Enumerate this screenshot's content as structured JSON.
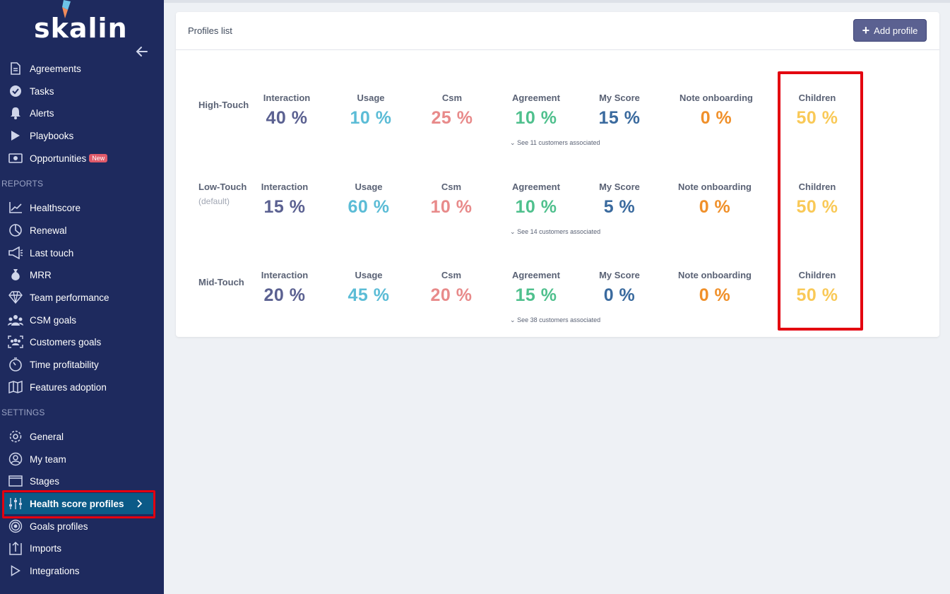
{
  "brand": {
    "name": "skalin"
  },
  "nav": {
    "top_items": [
      {
        "label": "Agreements",
        "icon": "document-icon"
      },
      {
        "label": "Tasks",
        "icon": "check-circle-icon"
      },
      {
        "label": "Alerts",
        "icon": "bell-icon"
      },
      {
        "label": "Playbooks",
        "icon": "play-icon"
      },
      {
        "label": "Opportunities",
        "icon": "money-icon",
        "badge": "New"
      }
    ],
    "reports_heading": "REPORTS",
    "reports_items": [
      {
        "label": "Healthscore",
        "icon": "line-chart-icon"
      },
      {
        "label": "Renewal",
        "icon": "pie-chart-icon"
      },
      {
        "label": "Last touch",
        "icon": "megaphone-icon"
      },
      {
        "label": "MRR",
        "icon": "money-bag-icon"
      },
      {
        "label": "Team performance",
        "icon": "diamond-icon"
      },
      {
        "label": "CSM goals",
        "icon": "team-icon"
      },
      {
        "label": "Customers goals",
        "icon": "group-frame-icon"
      },
      {
        "label": "Time profitability",
        "icon": "stopwatch-icon"
      },
      {
        "label": "Features adoption",
        "icon": "map-icon"
      }
    ],
    "settings_heading": "SETTINGS",
    "settings_items": [
      {
        "label": "General",
        "icon": "gear-icon"
      },
      {
        "label": "My team",
        "icon": "user-circle-icon"
      },
      {
        "label": "Stages",
        "icon": "window-icon"
      },
      {
        "label": "Health score profiles",
        "icon": "sliders-icon",
        "active": true
      },
      {
        "label": "Goals profiles",
        "icon": "target-icon"
      },
      {
        "label": "Imports",
        "icon": "upload-icon"
      },
      {
        "label": "Integrations",
        "icon": "play-outline-icon"
      }
    ]
  },
  "main": {
    "title": "Profiles list",
    "add_button": "Add profile",
    "profiles": [
      {
        "name": "High-Touch",
        "sub": "",
        "metrics": [
          {
            "label": "Interaction",
            "value": "40 %"
          },
          {
            "label": "Usage",
            "value": "10 %"
          },
          {
            "label": "Csm",
            "value": "25 %"
          },
          {
            "label": "Agreement",
            "value": "10 %"
          },
          {
            "label": "My Score",
            "value": "15 %"
          },
          {
            "label": "Note onboarding",
            "value": "0 %"
          },
          {
            "label": "Children",
            "value": "50 %"
          }
        ],
        "see_link": "See 11 customers associated"
      },
      {
        "name": "Low-Touch",
        "sub": "(default)",
        "metrics": [
          {
            "label": "Interaction",
            "value": "15 %"
          },
          {
            "label": "Usage",
            "value": "60 %"
          },
          {
            "label": "Csm",
            "value": "10 %"
          },
          {
            "label": "Agreement",
            "value": "10 %"
          },
          {
            "label": "My Score",
            "value": "5 %"
          },
          {
            "label": "Note onboarding",
            "value": "0 %"
          },
          {
            "label": "Children",
            "value": "50 %"
          }
        ],
        "see_link": "See 14 customers associated"
      },
      {
        "name": "Mid-Touch",
        "sub": "",
        "metrics": [
          {
            "label": "Interaction",
            "value": "20 %"
          },
          {
            "label": "Usage",
            "value": "45 %"
          },
          {
            "label": "Csm",
            "value": "20 %"
          },
          {
            "label": "Agreement",
            "value": "15 %"
          },
          {
            "label": "My Score",
            "value": "0 %"
          },
          {
            "label": "Note onboarding",
            "value": "0 %"
          },
          {
            "label": "Children",
            "value": "50 %"
          }
        ],
        "see_link": "See 38 customers associated"
      }
    ]
  },
  "colors": {
    "sidebar": "#1e2a5e",
    "active": "#0b5a87",
    "highlight": "#e3000f",
    "interaction": "#5b6191",
    "usage": "#5bbcd6",
    "csm": "#e88a8a",
    "agreement": "#4fc08d",
    "my_score": "#3a6a9e",
    "note_onboarding": "#f0902a",
    "children": "#f9c957"
  }
}
